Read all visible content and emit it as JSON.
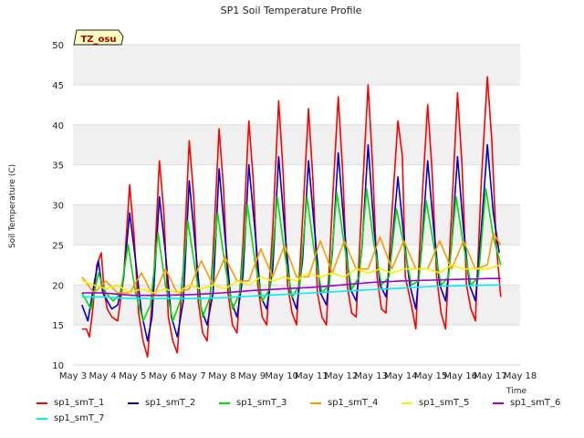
{
  "chart_data": {
    "type": "line",
    "title": "SP1 Soil Temperature Profile",
    "xlabel": "Time",
    "ylabel": "Soil Temperature (C)",
    "annotation": "TZ_osu",
    "xlim": [
      3,
      18
    ],
    "ylim": [
      10,
      50
    ],
    "x_ticks": [
      3,
      4,
      5,
      6,
      7,
      8,
      9,
      10,
      11,
      12,
      13,
      14,
      15,
      16,
      17,
      18
    ],
    "x_tick_labels": [
      "May 3",
      "May 4",
      "May 5",
      "May 6",
      "May 7",
      "May 8",
      "May 9",
      "May 10",
      "May 11",
      "May 12",
      "May 13",
      "May 14",
      "May 15",
      "May 16",
      "May 17",
      "May 18"
    ],
    "y_ticks": [
      10,
      15,
      20,
      25,
      30,
      35,
      40,
      45,
      50
    ],
    "y_tick_labels": [
      "10",
      "15",
      "20",
      "25",
      "30",
      "35",
      "40",
      "45",
      "50"
    ],
    "grid": true,
    "background_bands": "alternating grey",
    "legend_position": "bottom",
    "series": [
      {
        "name": "sp1_smT_1",
        "color": "#ff0000",
        "x": [
          3.3,
          3.45,
          3.55,
          3.65,
          3.8,
          3.95,
          4.05,
          4.15,
          4.3,
          4.5,
          4.7,
          4.9,
          5.05,
          5.2,
          5.35,
          5.5,
          5.7,
          5.9,
          6.05,
          6.2,
          6.35,
          6.5,
          6.7,
          6.9,
          7.05,
          7.2,
          7.35,
          7.5,
          7.7,
          7.9,
          8.05,
          8.2,
          8.35,
          8.5,
          8.7,
          8.9,
          9.05,
          9.2,
          9.35,
          9.5,
          9.7,
          9.9,
          10.05,
          10.2,
          10.35,
          10.5,
          10.7,
          10.9,
          11.05,
          11.2,
          11.35,
          11.5,
          11.7,
          11.9,
          12.05,
          12.2,
          12.35,
          12.5,
          12.7,
          12.9,
          13.05,
          13.2,
          13.35,
          13.5,
          13.7,
          13.9,
          14.05,
          14.15,
          14.35,
          14.5,
          14.7,
          14.9,
          15.05,
          15.2,
          15.35,
          15.5,
          15.7,
          15.9,
          16.05,
          16.2,
          16.35,
          16.5,
          16.7,
          16.9,
          17.05,
          17.2,
          17.35
        ],
        "y": [
          14.5,
          14.5,
          13.5,
          16.5,
          22.5,
          24,
          19,
          17,
          16,
          15.5,
          21,
          32.5,
          26,
          16.5,
          13,
          11,
          20,
          35.5,
          29,
          16,
          13,
          11.5,
          22,
          38,
          31,
          18,
          14,
          13,
          24,
          39.5,
          32,
          19,
          15,
          14,
          25,
          40.5,
          33,
          20,
          16,
          15,
          27,
          43,
          34,
          20,
          16.5,
          15,
          28,
          42,
          33,
          19,
          16,
          15,
          30,
          43.5,
          34,
          20,
          16.5,
          16,
          31,
          45,
          35,
          21,
          17,
          16.5,
          29,
          40.5,
          36,
          21,
          17.5,
          14.5,
          30,
          42.5,
          34,
          21,
          16.5,
          14.5,
          29,
          44,
          35,
          20,
          17,
          15.5,
          33,
          46,
          38,
          25,
          18.5
        ]
      },
      {
        "name": "sp1_smT_2",
        "color": "#0000cc",
        "x": [
          3.3,
          3.5,
          3.7,
          3.85,
          4.0,
          4.15,
          4.3,
          4.5,
          4.7,
          4.9,
          5.1,
          5.3,
          5.5,
          5.65,
          5.9,
          6.1,
          6.3,
          6.5,
          6.7,
          6.9,
          7.1,
          7.3,
          7.5,
          7.7,
          7.9,
          8.1,
          8.3,
          8.5,
          8.7,
          8.9,
          9.1,
          9.3,
          9.5,
          9.7,
          9.9,
          10.1,
          10.3,
          10.5,
          10.7,
          10.9,
          11.1,
          11.3,
          11.5,
          11.7,
          11.9,
          12.1,
          12.3,
          12.5,
          12.7,
          12.9,
          13.1,
          13.3,
          13.5,
          13.7,
          13.9,
          14.1,
          14.3,
          14.5,
          14.7,
          14.9,
          15.1,
          15.3,
          15.5,
          15.7,
          15.9,
          16.1,
          16.3,
          16.5,
          16.7,
          16.9,
          17.1,
          17.3
        ],
        "y": [
          17.5,
          15.5,
          20,
          23,
          19,
          18,
          17,
          17.5,
          21,
          29,
          23,
          16.5,
          13,
          16,
          31,
          24,
          16,
          13.5,
          18,
          33,
          25,
          17,
          15,
          19,
          34.5,
          26,
          18,
          16,
          21,
          35,
          27,
          18.5,
          17,
          22,
          36,
          27,
          19,
          17,
          23,
          35.5,
          27,
          19,
          17.5,
          24,
          36.5,
          27,
          19.5,
          18,
          25,
          37.5,
          27,
          20,
          18.5,
          25,
          33.5,
          26,
          20,
          17,
          25,
          35.5,
          27,
          20,
          18,
          25,
          36,
          27,
          20,
          18,
          27,
          37.5,
          29,
          24
        ]
      },
      {
        "name": "sp1_smT_3",
        "color": "#00dd00",
        "x": [
          3.3,
          3.6,
          3.85,
          4.1,
          4.35,
          4.6,
          4.85,
          5.1,
          5.35,
          5.6,
          5.85,
          6.1,
          6.35,
          6.6,
          6.85,
          7.1,
          7.35,
          7.6,
          7.85,
          8.1,
          8.35,
          8.6,
          8.85,
          9.1,
          9.35,
          9.6,
          9.85,
          10.1,
          10.35,
          10.6,
          10.85,
          11.1,
          11.35,
          11.6,
          11.85,
          12.1,
          12.35,
          12.6,
          12.85,
          13.1,
          13.35,
          13.6,
          13.85,
          14.1,
          14.35,
          14.6,
          14.85,
          15.1,
          15.35,
          15.6,
          15.85,
          16.1,
          16.35,
          16.6,
          16.85,
          17.1,
          17.35
        ],
        "y": [
          19,
          17,
          21.5,
          19,
          18,
          19,
          25,
          19,
          15.5,
          17.5,
          26.5,
          20,
          15.5,
          18,
          28,
          22,
          16,
          18.5,
          29,
          22.5,
          17,
          19,
          30,
          23,
          18,
          19.5,
          31,
          24,
          18.5,
          20,
          31,
          24,
          19,
          20,
          31.5,
          25,
          19.5,
          21,
          32,
          25,
          20,
          21,
          29.5,
          25,
          20,
          20.5,
          30.5,
          25,
          20,
          21,
          31,
          25,
          20,
          21,
          32,
          26,
          22.5
        ]
      },
      {
        "name": "sp1_smT_4",
        "color": "#ff9900",
        "x": [
          3.3,
          3.7,
          4.1,
          4.5,
          4.9,
          5.3,
          5.7,
          6.1,
          6.5,
          6.9,
          7.3,
          7.7,
          8.1,
          8.5,
          8.9,
          9.3,
          9.7,
          10.1,
          10.5,
          10.9,
          11.3,
          11.7,
          12.1,
          12.5,
          12.9,
          13.3,
          13.7,
          14.1,
          14.5,
          14.9,
          15.3,
          15.7,
          16.1,
          16.5,
          16.9,
          17.1,
          17.35
        ],
        "y": [
          21,
          19,
          20.5,
          19,
          19,
          21.5,
          18.5,
          22,
          19,
          19.5,
          23,
          20,
          23.5,
          20.5,
          20.5,
          24.5,
          21,
          25,
          21,
          21,
          25.5,
          21.5,
          25.5,
          22,
          22,
          26,
          22,
          25.5,
          22,
          22,
          25.5,
          22,
          25.5,
          22,
          22.5,
          26.5,
          25
        ]
      },
      {
        "name": "sp1_smT_5",
        "color": "#ffee00",
        "x": [
          3.3,
          3.7,
          4.1,
          4.5,
          4.9,
          5.3,
          5.7,
          6.1,
          6.5,
          6.9,
          7.3,
          7.7,
          8.1,
          8.5,
          8.9,
          9.3,
          9.7,
          10.1,
          10.5,
          10.9,
          11.3,
          11.7,
          12.1,
          12.5,
          12.9,
          13.3,
          13.7,
          14.1,
          14.5,
          14.9,
          15.3,
          15.7,
          16.1,
          16.5,
          16.9,
          17.35
        ],
        "y": [
          20.5,
          20,
          19.5,
          20,
          19,
          19.5,
          19,
          19.5,
          19,
          20,
          19.5,
          20,
          19.5,
          20.5,
          20,
          21,
          20.5,
          21,
          20.5,
          21.5,
          21,
          21.5,
          21,
          22,
          21.5,
          22,
          21.5,
          22,
          22,
          22,
          21.5,
          22.5,
          22,
          22,
          22,
          22.5
        ]
      },
      {
        "name": "sp1_smT_6",
        "color": "#9900cc",
        "x": [
          3.3,
          4,
          5,
          6,
          7,
          8,
          9,
          10,
          11,
          12,
          13,
          14,
          15,
          16,
          17,
          17.35
        ],
        "y": [
          19,
          19,
          18.7,
          18.7,
          18.8,
          19,
          19.3,
          19.5,
          19.7,
          20,
          20.3,
          20.5,
          20.6,
          20.7,
          20.8,
          20.8
        ]
      },
      {
        "name": "sp1_smT_7",
        "color": "#00eeee",
        "x": [
          3.3,
          4,
          5,
          6,
          7,
          8,
          9,
          10,
          11,
          12,
          13,
          14,
          15,
          16,
          17,
          17.35
        ],
        "y": [
          18.5,
          18.5,
          18.3,
          18.3,
          18.3,
          18.4,
          18.6,
          18.8,
          19,
          19.2,
          19.4,
          19.6,
          19.8,
          19.9,
          20,
          20
        ]
      }
    ]
  }
}
